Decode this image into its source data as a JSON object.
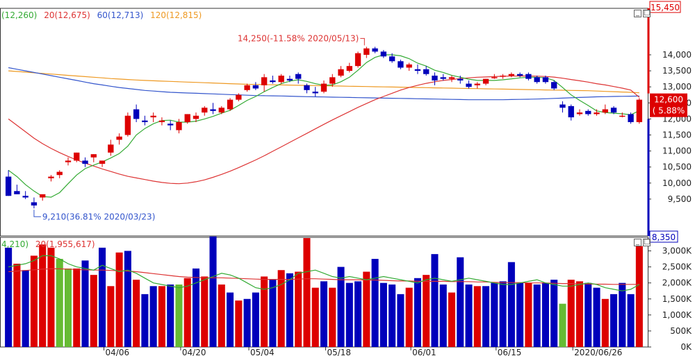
{
  "colors": {
    "up": "#dd0000",
    "down": "#0000bb",
    "neutral_volume": "#66bb33",
    "ma5": "#33aa33",
    "ma20": "#dd3333",
    "ma60": "#3355cc",
    "ma120": "#ee9922",
    "price_label_bg": "#dd0000",
    "low_label_bg": "#0000bb"
  },
  "price_panel": {
    "legend": [
      {
        "text": "(12,260)",
        "color": "#33aa33"
      },
      {
        "text": "20(12,675)",
        "color": "#dd3333"
      },
      {
        "text": "60(12,713)",
        "color": "#3355cc"
      },
      {
        "text": "120(12,815)",
        "color": "#ee9922"
      }
    ],
    "high_label": "15,450",
    "low_label": "8,350",
    "current_price": "12,600",
    "current_change": "5.88%",
    "annotation_high": "14,250(-11.58% 2020/05/13)",
    "annotation_low": "9,210(36.81% 2020/03/23)"
  },
  "volume_panel": {
    "legend": [
      {
        "text": "4,210)",
        "color": "#33aa33"
      },
      {
        "text": "20(1,955,617)",
        "color": "#dd3333"
      }
    ]
  },
  "chart_data": {
    "type": "candlestick",
    "price": {
      "ylim": [
        8350,
        15450
      ],
      "ticks": [
        9500,
        10000,
        10500,
        11000,
        11500,
        12000,
        12500,
        13000,
        13500,
        14000
      ],
      "tick_labels": [
        "9,500",
        "10,000",
        "10,500",
        "11,000",
        "11,500",
        "12,000",
        "12,500",
        "13,000",
        "13,500",
        "14,000"
      ],
      "candles": [
        [
          10200,
          10400,
          9600,
          9600
        ],
        [
          9750,
          9950,
          9650,
          9650
        ],
        [
          9600,
          9750,
          9500,
          9550
        ],
        [
          9400,
          9550,
          9210,
          9300
        ],
        [
          9550,
          9650,
          9450,
          9650
        ],
        [
          10150,
          10250,
          10050,
          10200
        ],
        [
          10250,
          10400,
          10150,
          10350
        ],
        [
          10650,
          10800,
          10550,
          10700
        ],
        [
          10700,
          10950,
          10650,
          10950
        ],
        [
          10700,
          10800,
          10500,
          10600
        ],
        [
          10800,
          10900,
          10650,
          10900
        ],
        [
          10600,
          10700,
          10500,
          10700
        ],
        [
          10950,
          11350,
          10850,
          11200
        ],
        [
          11350,
          11550,
          11200,
          11450
        ],
        [
          11500,
          12200,
          11450,
          12100
        ],
        [
          12300,
          12450,
          11900,
          12000
        ],
        [
          11950,
          12100,
          11800,
          11900
        ],
        [
          12050,
          12200,
          11900,
          12100
        ],
        [
          11900,
          12050,
          11800,
          11950
        ],
        [
          11850,
          11950,
          11650,
          11800
        ],
        [
          11650,
          12000,
          11550,
          11900
        ],
        [
          11900,
          12150,
          11850,
          12150
        ],
        [
          12000,
          12200,
          11900,
          12100
        ],
        [
          12200,
          12400,
          12100,
          12350
        ],
        [
          12300,
          12500,
          12150,
          12250
        ],
        [
          12200,
          12400,
          12150,
          12350
        ],
        [
          12300,
          12650,
          12250,
          12600
        ],
        [
          12600,
          12800,
          12550,
          12750
        ],
        [
          12900,
          13100,
          12850,
          13050
        ],
        [
          13050,
          13150,
          12900,
          12950
        ],
        [
          13050,
          13400,
          12850,
          13300
        ],
        [
          13200,
          13350,
          13100,
          13150
        ],
        [
          13150,
          13400,
          13100,
          13350
        ],
        [
          13250,
          13350,
          13150,
          13200
        ],
        [
          13400,
          13450,
          13100,
          13250
        ],
        [
          13050,
          13100,
          12800,
          12900
        ],
        [
          12850,
          13000,
          12700,
          12800
        ],
        [
          12850,
          13200,
          12800,
          13100
        ],
        [
          13100,
          13400,
          13000,
          13300
        ],
        [
          13350,
          13650,
          13300,
          13550
        ],
        [
          13500,
          13750,
          13450,
          13650
        ],
        [
          13650,
          14100,
          13600,
          14050
        ],
        [
          14000,
          14250,
          13900,
          14200
        ],
        [
          14200,
          14250,
          14050,
          14100
        ],
        [
          14100,
          14150,
          13900,
          13950
        ],
        [
          13950,
          14050,
          13750,
          13800
        ],
        [
          13800,
          13850,
          13550,
          13600
        ],
        [
          13600,
          13750,
          13500,
          13700
        ],
        [
          13550,
          13700,
          13400,
          13500
        ],
        [
          13550,
          13650,
          13350,
          13400
        ],
        [
          13350,
          13450,
          13050,
          13200
        ],
        [
          13300,
          13400,
          13200,
          13250
        ],
        [
          13250,
          13350,
          13150,
          13300
        ],
        [
          13250,
          13350,
          13100,
          13200
        ],
        [
          13100,
          13200,
          12950,
          13000
        ],
        [
          13050,
          13150,
          12950,
          13100
        ],
        [
          13100,
          13250,
          13050,
          13250
        ],
        [
          13300,
          13400,
          13250,
          13300
        ],
        [
          13350,
          13400,
          13250,
          13350
        ],
        [
          13350,
          13450,
          13300,
          13400
        ],
        [
          13400,
          13450,
          13300,
          13350
        ],
        [
          13400,
          13450,
          13200,
          13250
        ],
        [
          13300,
          13350,
          13100,
          13150
        ],
        [
          13300,
          13350,
          13100,
          13150
        ],
        [
          13150,
          13200,
          12900,
          12950
        ],
        [
          12450,
          12550,
          12200,
          12350
        ],
        [
          12400,
          12450,
          11950,
          12050
        ],
        [
          12150,
          12300,
          12100,
          12200
        ],
        [
          12250,
          12300,
          12100,
          12150
        ],
        [
          12150,
          12300,
          12100,
          12200
        ],
        [
          12200,
          12450,
          12150,
          12300
        ],
        [
          12350,
          12400,
          12150,
          12200
        ],
        [
          12100,
          12200,
          12050,
          12100
        ],
        [
          12150,
          12200,
          11850,
          11900
        ],
        [
          11900,
          12650,
          11850,
          12600
        ]
      ],
      "ma5": [
        10400,
        10200,
        9950,
        9750,
        9580,
        9560,
        9700,
        9980,
        10250,
        10450,
        10560,
        10660,
        10780,
        10920,
        11150,
        11500,
        11700,
        11850,
        11950,
        11960,
        11900,
        11900,
        11930,
        12000,
        12080,
        12180,
        12270,
        12420,
        12580,
        12700,
        12850,
        12980,
        13100,
        13180,
        13220,
        13170,
        13100,
        13050,
        13060,
        13160,
        13300,
        13520,
        13760,
        13920,
        14000,
        14000,
        13970,
        13880,
        13740,
        13650,
        13520,
        13450,
        13360,
        13300,
        13240,
        13200,
        13200,
        13200,
        13220,
        13250,
        13280,
        13300,
        13300,
        13280,
        13200,
        12980,
        12750,
        12580,
        12420,
        12250,
        12200,
        12180,
        12160,
        12130,
        12260
      ],
      "ma20": [
        12000,
        11800,
        11600,
        11400,
        11230,
        11080,
        10950,
        10830,
        10720,
        10620,
        10530,
        10440,
        10360,
        10280,
        10210,
        10160,
        10110,
        10060,
        10020,
        9990,
        9980,
        10000,
        10040,
        10100,
        10180,
        10270,
        10370,
        10480,
        10600,
        10720,
        10850,
        10990,
        11130,
        11270,
        11410,
        11550,
        11690,
        11830,
        11970,
        12100,
        12230,
        12360,
        12480,
        12600,
        12700,
        12800,
        12900,
        12980,
        13050,
        13110,
        13160,
        13200,
        13230,
        13260,
        13280,
        13300,
        13310,
        13320,
        13330,
        13335,
        13340,
        13340,
        13335,
        13325,
        13305,
        13270,
        13230,
        13190,
        13150,
        13100,
        13060,
        13010,
        12960,
        12900,
        12675
      ],
      "ma60": [
        13600,
        13550,
        13500,
        13450,
        13400,
        13350,
        13300,
        13250,
        13200,
        13150,
        13100,
        13060,
        13020,
        12980,
        12950,
        12920,
        12890,
        12870,
        12850,
        12830,
        12820,
        12810,
        12800,
        12790,
        12780,
        12770,
        12760,
        12750,
        12740,
        12730,
        12725,
        12720,
        12715,
        12710,
        12700,
        12695,
        12690,
        12685,
        12680,
        12675,
        12670,
        12665,
        12660,
        12655,
        12650,
        12645,
        12640,
        12635,
        12630,
        12625,
        12620,
        12615,
        12610,
        12605,
        12600,
        12600,
        12600,
        12600,
        12600,
        12605,
        12610,
        12615,
        12620,
        12630,
        12640,
        12650,
        12660,
        12670,
        12680,
        12690,
        12695,
        12700,
        12705,
        12710,
        12713
      ],
      "ma120": [
        13500,
        13480,
        13460,
        13440,
        13420,
        13400,
        13380,
        13360,
        13340,
        13320,
        13300,
        13280,
        13260,
        13245,
        13230,
        13215,
        13200,
        13190,
        13180,
        13170,
        13160,
        13150,
        13140,
        13130,
        13120,
        13110,
        13100,
        13090,
        13080,
        13075,
        13070,
        13065,
        13060,
        13055,
        13050,
        13045,
        13040,
        13035,
        13030,
        13025,
        13020,
        13015,
        13010,
        13005,
        13000,
        12995,
        12990,
        12985,
        12980,
        12975,
        12970,
        12965,
        12960,
        12955,
        12950,
        12945,
        12940,
        12935,
        12930,
        12925,
        12920,
        12915,
        12910,
        12905,
        12900,
        12895,
        12890,
        12885,
        12880,
        12870,
        12860,
        12850,
        12840,
        12830,
        12815
      ]
    },
    "volume": {
      "ylim": [
        0,
        3250000
      ],
      "ticks": [
        0,
        500000,
        1000000,
        1500000,
        2000000,
        2500000,
        3000000
      ],
      "tick_labels": [
        "0K",
        "500K",
        "1,000K",
        "1,500K",
        "2,000K",
        "2,500K",
        "3,000K"
      ],
      "values": [
        3100000,
        2600000,
        2400000,
        2850000,
        3200000,
        3100000,
        2750000,
        2450000,
        2450000,
        2700000,
        2250000,
        3100000,
        1900000,
        2950000,
        3000000,
        2100000,
        1650000,
        1900000,
        1900000,
        1950000,
        1950000,
        2150000,
        2450000,
        2200000,
        3450000,
        1950000,
        1700000,
        1450000,
        1500000,
        1700000,
        2200000,
        2100000,
        2400000,
        2300000,
        2350000,
        3400000,
        1850000,
        2050000,
        1850000,
        2500000,
        2000000,
        2050000,
        2350000,
        2750000,
        2000000,
        1950000,
        1650000,
        1850000,
        2150000,
        2250000,
        2900000,
        1950000,
        1700000,
        2800000,
        1950000,
        1900000,
        1900000,
        2000000,
        2050000,
        2650000,
        2000000,
        2000000,
        1950000,
        2000000,
        2100000,
        1350000,
        2100000,
        2050000,
        2000000,
        1850000,
        1500000,
        1650000,
        2000000,
        1650000,
        3150000
      ],
      "kind": [
        "d",
        "u",
        "d",
        "u",
        "u",
        "u",
        "n",
        "n",
        "u",
        "d",
        "u",
        "d",
        "u",
        "u",
        "d",
        "u",
        "d",
        "d",
        "u",
        "d",
        "n",
        "u",
        "d",
        "u",
        "d",
        "u",
        "d",
        "u",
        "d",
        "d",
        "u",
        "d",
        "u",
        "d",
        "u",
        "u",
        "u",
        "d",
        "u",
        "d",
        "d",
        "d",
        "u",
        "d",
        "d",
        "d",
        "d",
        "u",
        "d",
        "u",
        "d",
        "d",
        "u",
        "d",
        "d",
        "u",
        "d",
        "d",
        "d",
        "d",
        "d",
        "u",
        "d",
        "d",
        "d",
        "n",
        "u",
        "u",
        "d",
        "d",
        "u",
        "d",
        "d",
        "d",
        "u"
      ],
      "ma5": [
        2500000,
        2550000,
        2600000,
        2700000,
        2850000,
        2850000,
        2750000,
        2600000,
        2500000,
        2450000,
        2400000,
        2550000,
        2450000,
        2350000,
        2400000,
        2300000,
        2150000,
        2000000,
        1950000,
        1900000,
        1850000,
        1900000,
        2000000,
        2100000,
        2200000,
        2300000,
        2250000,
        2150000,
        2000000,
        1850000,
        1800000,
        1850000,
        1950000,
        2100000,
        2300000,
        2350000,
        2400000,
        2300000,
        2200000,
        2150000,
        2200000,
        2150000,
        2100000,
        2150000,
        2200000,
        2150000,
        2100000,
        2050000,
        2000000,
        2100000,
        2150000,
        2100000,
        2050000,
        2100000,
        2150000,
        2100000,
        2050000,
        2000000,
        1950000,
        1950000,
        2000000,
        2050000,
        2100000,
        2000000,
        1950000,
        1900000,
        1900000,
        1950000,
        2000000,
        1950000,
        1850000,
        1800000,
        1750000,
        1800000,
        1950000
      ],
      "ma20": [
        2350000,
        2370000,
        2390000,
        2410000,
        2430000,
        2440000,
        2440000,
        2430000,
        2420000,
        2410000,
        2400000,
        2400000,
        2390000,
        2380000,
        2370000,
        2350000,
        2320000,
        2290000,
        2260000,
        2230000,
        2200000,
        2180000,
        2170000,
        2160000,
        2160000,
        2160000,
        2150000,
        2140000,
        2130000,
        2120000,
        2110000,
        2110000,
        2110000,
        2110000,
        2120000,
        2130000,
        2130000,
        2120000,
        2110000,
        2100000,
        2100000,
        2100000,
        2090000,
        2090000,
        2080000,
        2070000,
        2060000,
        2060000,
        2050000,
        2050000,
        2050000,
        2050000,
        2040000,
        2040000,
        2040000,
        2030000,
        2030000,
        2020000,
        2010000,
        2010000,
        2010000,
        2000000,
        2000000,
        2000000,
        1990000,
        1980000,
        1980000,
        1970000,
        1970000,
        1960000,
        1960000,
        1955000,
        1955000,
        1955000,
        1955617
      ]
    },
    "x_labels": [
      {
        "index": 12,
        "label": "04/06"
      },
      {
        "index": 21,
        "label": "04/20"
      },
      {
        "index": 29,
        "label": "05/04"
      },
      {
        "index": 38,
        "label": "05/18"
      },
      {
        "index": 48,
        "label": "06/01"
      },
      {
        "index": 58,
        "label": "06/15"
      },
      {
        "index": 67,
        "label": "2020/06/26"
      }
    ]
  }
}
